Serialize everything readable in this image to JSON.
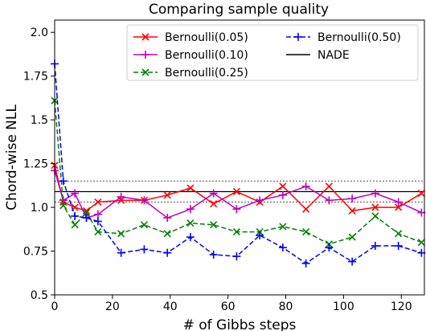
{
  "chart_data": {
    "type": "line",
    "title": "Comparing sample quality",
    "xlabel": "# of Gibbs steps",
    "ylabel": "Chord-wise NLL",
    "xlim": [
      0,
      128
    ],
    "ylim": [
      0.5,
      2.07
    ],
    "xticks": [
      0,
      20,
      40,
      60,
      80,
      100,
      120
    ],
    "yticks": [
      0.5,
      0.75,
      1.0,
      1.25,
      1.5,
      1.75,
      2.0
    ],
    "ytick_labels": [
      "0.5",
      "0.75",
      "1.0",
      "1.25",
      "1.5",
      "1.75",
      "2.0"
    ],
    "grid": false,
    "legend_position": "top-right",
    "x": [
      0,
      3,
      7,
      11,
      15,
      23,
      31,
      39,
      47,
      55,
      63,
      71,
      79,
      87,
      95,
      103,
      111,
      119,
      127
    ],
    "series": [
      {
        "name": "Bernoulli(0.05)",
        "color": "#ff0000",
        "dash": "solid",
        "marker": "x",
        "values": [
          1.24,
          1.03,
          1.0,
          0.98,
          1.03,
          1.04,
          1.04,
          1.07,
          1.11,
          1.02,
          1.09,
          1.03,
          1.12,
          0.99,
          1.12,
          0.98,
          1.0,
          1.0,
          1.08
        ]
      },
      {
        "name": "Bernoulli(0.10)",
        "color": "#bf00bf",
        "dash": "solid",
        "marker": "+",
        "values": [
          1.21,
          1.04,
          1.08,
          0.94,
          0.96,
          1.06,
          1.04,
          0.94,
          0.99,
          1.08,
          0.99,
          1.04,
          1.07,
          1.12,
          1.04,
          1.05,
          1.08,
          1.03,
          0.97
        ]
      },
      {
        "name": "Bernoulli(0.25)",
        "color": "#008000",
        "dash": "dashed",
        "marker": "x",
        "values": [
          1.61,
          1.01,
          0.9,
          0.97,
          0.86,
          0.85,
          0.9,
          0.85,
          0.91,
          0.9,
          0.86,
          0.86,
          0.89,
          0.86,
          0.79,
          0.83,
          0.95,
          0.85,
          0.8
        ]
      },
      {
        "name": "Bernoulli(0.50)",
        "color": "#0000ff",
        "dash": "dashed",
        "marker": "+",
        "values": [
          1.82,
          1.15,
          0.95,
          0.94,
          0.92,
          0.74,
          0.76,
          0.74,
          0.83,
          0.73,
          0.72,
          0.84,
          0.77,
          0.68,
          0.77,
          0.69,
          0.78,
          0.78,
          0.74
        ]
      }
    ],
    "reference": {
      "name": "NADE",
      "color": "#000000",
      "value": 1.09,
      "band": [
        1.03,
        1.15
      ]
    }
  }
}
